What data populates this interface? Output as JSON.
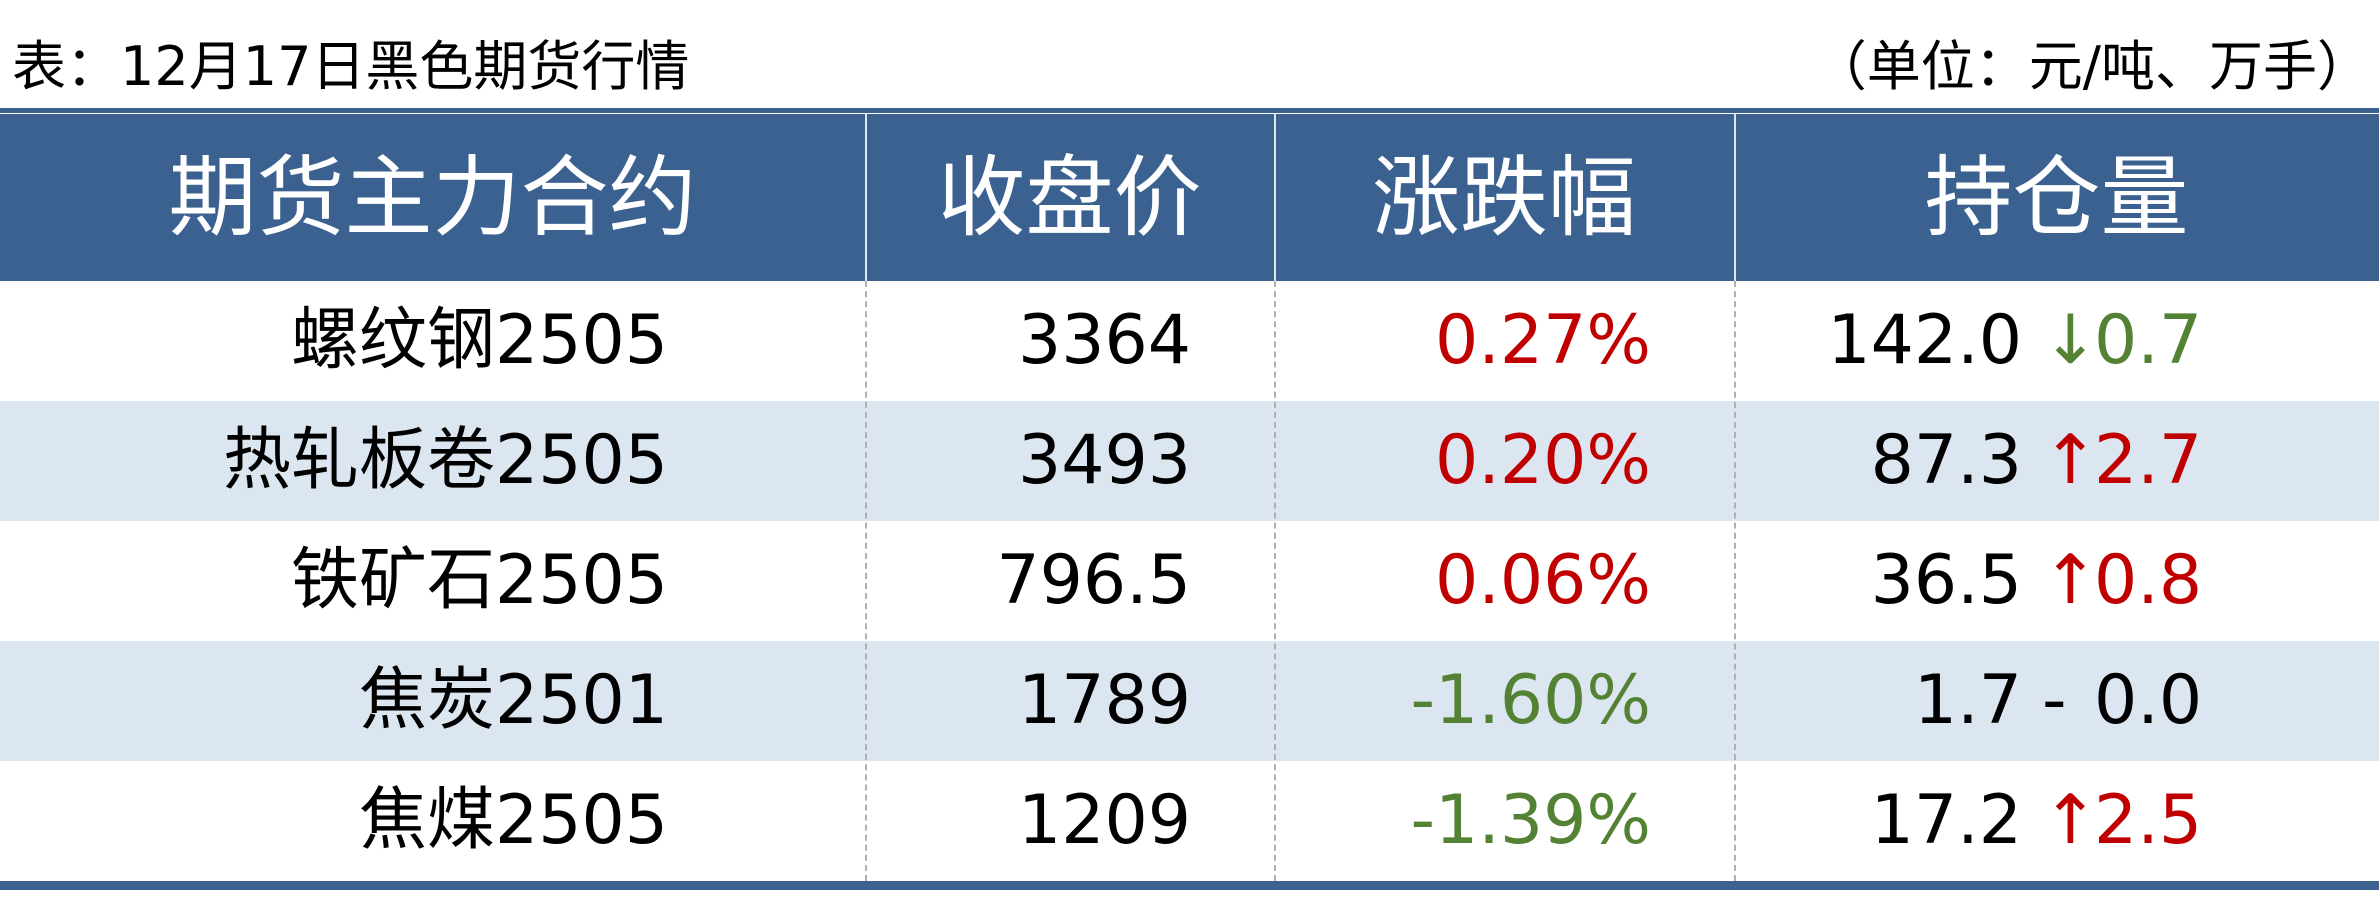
{
  "header": {
    "title": "表：12月17日黑色期货行情",
    "unit": "（单位：元/吨、万手）"
  },
  "table": {
    "columns": [
      "期货主力合约",
      "收盘价",
      "涨跌幅",
      "持仓量"
    ],
    "colors": {
      "header_bg": "#3a6190",
      "stripe": "#dce6f1"
    },
    "rows": [
      {
        "name": "螺纹钢2505",
        "close": "3364",
        "change": "0.27%",
        "change_color": "#c00000",
        "oi": "142.0",
        "arrow": "↓",
        "delta": "0.7",
        "delta_color": "#548235"
      },
      {
        "name": "热轧板卷2505",
        "close": "3493",
        "change": "0.20%",
        "change_color": "#c00000",
        "oi": "87.3",
        "arrow": "↑",
        "delta": "2.7",
        "delta_color": "#c00000"
      },
      {
        "name": "铁矿石2505",
        "close": "796.5",
        "change": "0.06%",
        "change_color": "#c00000",
        "oi": "36.5",
        "arrow": "↑",
        "delta": "0.8",
        "delta_color": "#c00000"
      },
      {
        "name": "焦炭2501",
        "close": "1789",
        "change": "-1.60%",
        "change_color": "#548235",
        "oi": "1.7",
        "arrow": "-",
        "delta": "0.0",
        "delta_color": "#000000"
      },
      {
        "name": "焦煤2505",
        "close": "1209",
        "change": "-1.39%",
        "change_color": "#548235",
        "oi": "17.2",
        "arrow": "↑",
        "delta": "2.5",
        "delta_color": "#c00000"
      }
    ]
  }
}
